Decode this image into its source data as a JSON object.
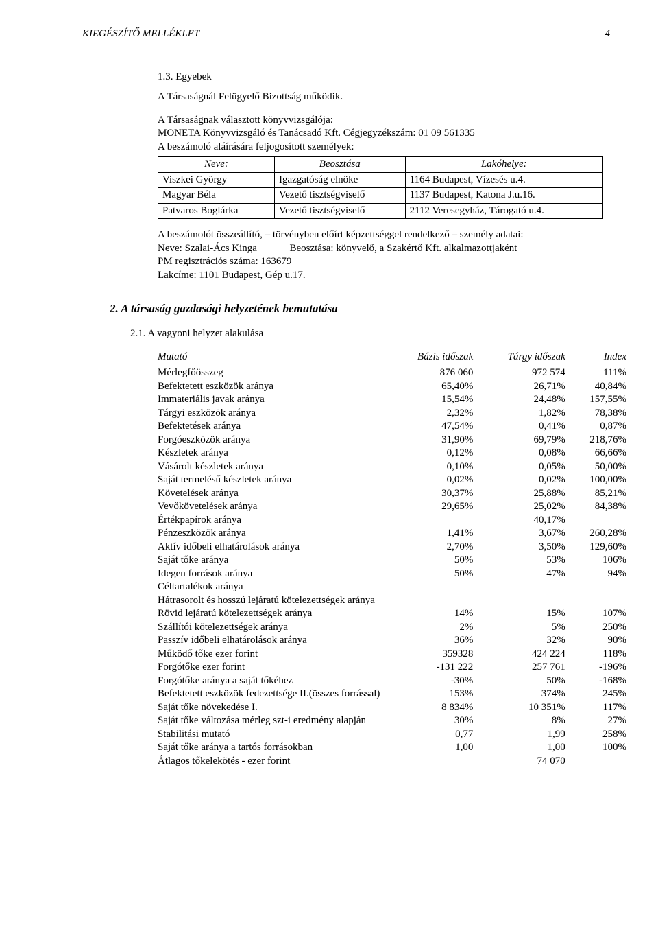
{
  "header": {
    "title": "KIEGÉSZÍTŐ MELLÉKLET",
    "page": "4"
  },
  "s13": {
    "num": "1.3. Egyebek",
    "p1": "A Társaságnál Felügyelő Bizottság működik.",
    "p2": "A Társaságnak választott könyvvizsgálója:",
    "p3": "MONETA Könyvvizsgáló és Tanácsadó Kft. Cégjegyzékszám: 01 09 561335",
    "p4": "A beszámoló aláírására feljogosított személyek:",
    "tbl": {
      "h1": "Neve:",
      "h2": "Beosztása",
      "h3": "Lakóhelye:",
      "rows": [
        {
          "a": "Viszkei György",
          "b": "Igazgatóság elnöke",
          "c": "1164 Budapest, Vízesés u.4."
        },
        {
          "a": "Magyar Béla",
          "b": "Vezető tisztségviselő",
          "c": "1137 Budapest, Katona J.u.16."
        },
        {
          "a": "Patvaros Boglárka",
          "b": "Vezető tisztségviselő",
          "c": "2112 Veresegyház, Tárogató u.4."
        }
      ]
    },
    "p5a": "A beszámolót összeállító, – törvényben előírt képzettséggel rendelkező – személy adatai:",
    "p5b_l": "Neve: Szalai-Ács Kinga",
    "p5b_r": "Beosztása: könyvelő, a Szakértő Kft. alkalmazottjaként",
    "p5c": "PM regisztrációs száma: 163679",
    "p5d": "Lakcíme: 1101 Budapest, Gép u.17."
  },
  "s2": {
    "title": "2.  A társaság gazdasági helyzetének bemutatása",
    "sub": "2.1. A vagyoni helyzet alakulása",
    "cols": {
      "c1": "Mutató",
      "c2": "Bázis időszak",
      "c3": "Tárgy időszak",
      "c4": "Index"
    },
    "rows": [
      {
        "m": "Mérlegfőösszeg",
        "b": "876 060",
        "t": "972 574",
        "i": "111%"
      },
      {
        "m": "Befektetett eszközök aránya",
        "b": "65,40%",
        "t": "26,71%",
        "i": "40,84%"
      },
      {
        "m": "Immateriális javak aránya",
        "b": "15,54%",
        "t": "24,48%",
        "i": "157,55%"
      },
      {
        "m": "Tárgyi eszközök aránya",
        "b": "2,32%",
        "t": "1,82%",
        "i": "78,38%"
      },
      {
        "m": "Befektetések aránya",
        "b": "47,54%",
        "t": "0,41%",
        "i": "0,87%"
      },
      {
        "m": "Forgóeszközök aránya",
        "b": "31,90%",
        "t": "69,79%",
        "i": "218,76%"
      },
      {
        "m": "Készletek aránya",
        "b": "0,12%",
        "t": "0,08%",
        "i": "66,66%"
      },
      {
        "m": "Vásárolt készletek aránya",
        "b": "0,10%",
        "t": "0,05%",
        "i": "50,00%"
      },
      {
        "m": "Saját termelésű készletek aránya",
        "b": "0,02%",
        "t": "0,02%",
        "i": "100,00%"
      },
      {
        "m": "Követelések aránya",
        "b": "30,37%",
        "t": "25,88%",
        "i": "85,21%"
      },
      {
        "m": "Vevőkövetelések aránya",
        "b": "29,65%",
        "t": "25,02%",
        "i": "84,38%"
      },
      {
        "m": "Értékpapírok aránya",
        "b": "",
        "t": "40,17%",
        "i": ""
      },
      {
        "m": "Pénzeszközök aránya",
        "b": "1,41%",
        "t": "3,67%",
        "i": "260,28%"
      },
      {
        "m": "Aktív időbeli elhatárolások aránya",
        "b": "2,70%",
        "t": "3,50%",
        "i": "129,60%"
      },
      {
        "m": "Saját tőke aránya",
        "b": "50%",
        "t": "53%",
        "i": "106%"
      },
      {
        "m": "Idegen források aránya",
        "b": "50%",
        "t": "47%",
        "i": "94%"
      },
      {
        "m": "Céltartalékok aránya",
        "b": "",
        "t": "",
        "i": ""
      },
      {
        "m": "Hátrasorolt és hosszú lejáratú kötelezettségek aránya",
        "b": "",
        "t": "",
        "i": ""
      },
      {
        "m": "Rövid lejáratú kötelezettségek aránya",
        "b": "14%",
        "t": "15%",
        "i": "107%"
      },
      {
        "m": "Szállítói kötelezettségek aránya",
        "b": "2%",
        "t": "5%",
        "i": "250%"
      },
      {
        "m": "Passzív időbeli elhatárolások aránya",
        "b": "36%",
        "t": "32%",
        "i": "90%"
      },
      {
        "m": "Működő tőke ezer forint",
        "b": "359328",
        "t": "424 224",
        "i": "118%"
      },
      {
        "m": "Forgótőke ezer forint",
        "b": "-131 222",
        "t": "257 761",
        "i": "-196%"
      },
      {
        "m": "Forgótőke aránya a saját tőkéhez",
        "b": "-30%",
        "t": "50%",
        "i": "-168%"
      },
      {
        "m": "Befektetett eszközök fedezettsége II.(összes forrással)",
        "b": "153%",
        "t": "374%",
        "i": "245%"
      },
      {
        "m": "Saját tőke növekedése I.",
        "b": "8 834%",
        "t": "10 351%",
        "i": "117%"
      },
      {
        "m": "Saját tőke változása mérleg szt-i eredmény alapján",
        "b": "30%",
        "t": "8%",
        "i": "27%"
      },
      {
        "m": "Stabilitási mutató",
        "b": "0,77",
        "t": "1,99",
        "i": "258%"
      },
      {
        "m": "Saját tőke aránya a tartós forrásokban",
        "b": "1,00",
        "t": "1,00",
        "i": "100%"
      },
      {
        "m": "Átlagos tőkelekötés - ezer forint",
        "b": "",
        "t": "74 070",
        "i": ""
      }
    ]
  }
}
